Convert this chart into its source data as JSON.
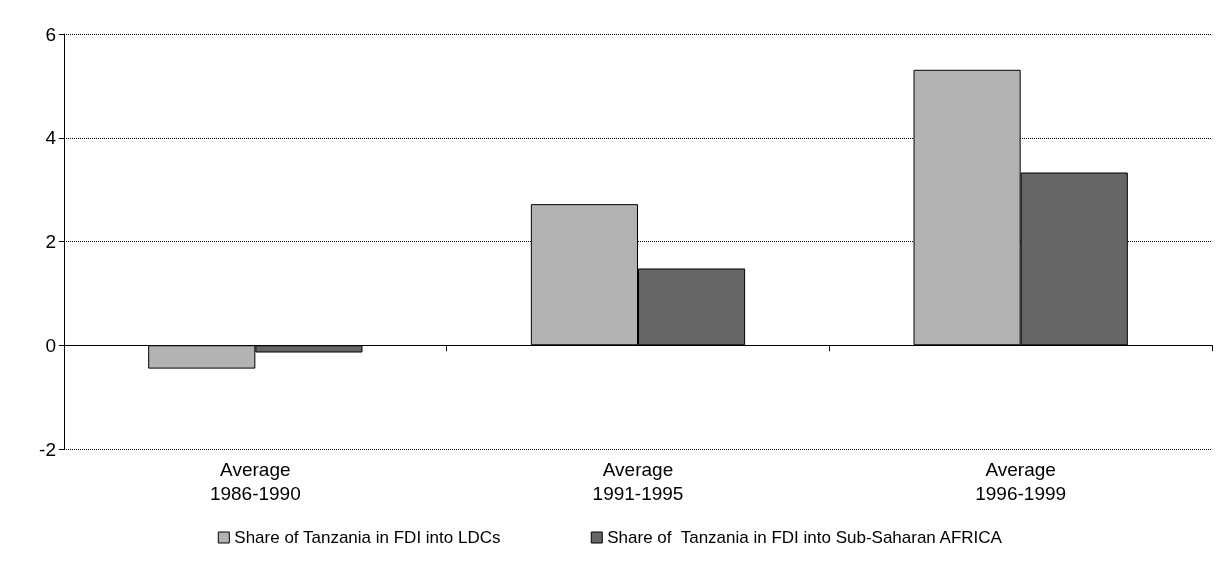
{
  "chart_data": {
    "type": "bar",
    "categories": [
      "Average\n1986-1990",
      "Average\n1991-1995",
      "Average\n1996-1999"
    ],
    "series": [
      {
        "name": "Share of Tanzania in FDI into LDCs",
        "color": "#b3b3b3",
        "values": [
          -0.45,
          2.72,
          5.31
        ]
      },
      {
        "name": "Share of  Tanzania in FDI into Sub-Saharan AFRICA",
        "color": "#666666",
        "values": [
          -0.14,
          1.48,
          3.33
        ]
      }
    ],
    "ylim": [
      -2,
      6
    ],
    "yticks": [
      -2,
      0,
      2,
      4,
      6
    ],
    "grid": "y",
    "legend": "bottom"
  }
}
